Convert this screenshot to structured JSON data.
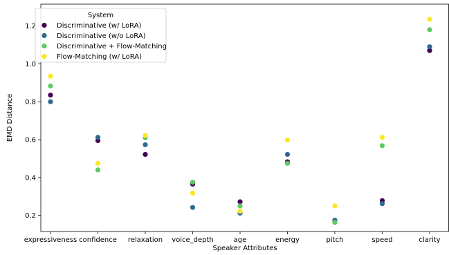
{
  "chart_data": {
    "type": "scatter",
    "title": "",
    "xlabel": "Speaker Attributes",
    "ylabel": "EMD Distance",
    "categories": [
      "expressiveness",
      "confidence",
      "relaxation",
      "voice_depth",
      "age",
      "energy",
      "pitch",
      "speed",
      "clarity"
    ],
    "ylim": [
      0.115,
      1.315
    ],
    "yticks": [
      0.2,
      0.4,
      0.6,
      0.8,
      1.0,
      1.2
    ],
    "ytick_labels": [
      "0.2",
      "0.4",
      "0.6",
      "0.8",
      "1.0",
      "1.2"
    ],
    "grid": false,
    "legend": {
      "title": "System",
      "placement": "top-left"
    },
    "series": [
      {
        "name": "Discriminative (w/ LoRA)",
        "color": "#440154",
        "values": [
          0.835,
          0.595,
          0.522,
          0.365,
          0.272,
          0.483,
          0.172,
          0.278,
          1.07
        ]
      },
      {
        "name": "Discriminative (w/o LoRA)",
        "color": "#31688e",
        "values": [
          0.8,
          0.612,
          0.573,
          0.242,
          0.212,
          0.522,
          0.175,
          0.262,
          1.09
        ]
      },
      {
        "name": "Discriminative + Flow-Matching",
        "color": "#5ec962",
        "values": [
          0.883,
          0.44,
          0.61,
          0.375,
          0.25,
          0.475,
          0.163,
          0.568,
          1.18
        ]
      },
      {
        "name": "Flow-Matching (w/ LoRA)",
        "color": "#fde725",
        "values": [
          0.935,
          0.475,
          0.622,
          0.318,
          0.222,
          0.598,
          0.25,
          0.612,
          1.235
        ]
      }
    ]
  }
}
